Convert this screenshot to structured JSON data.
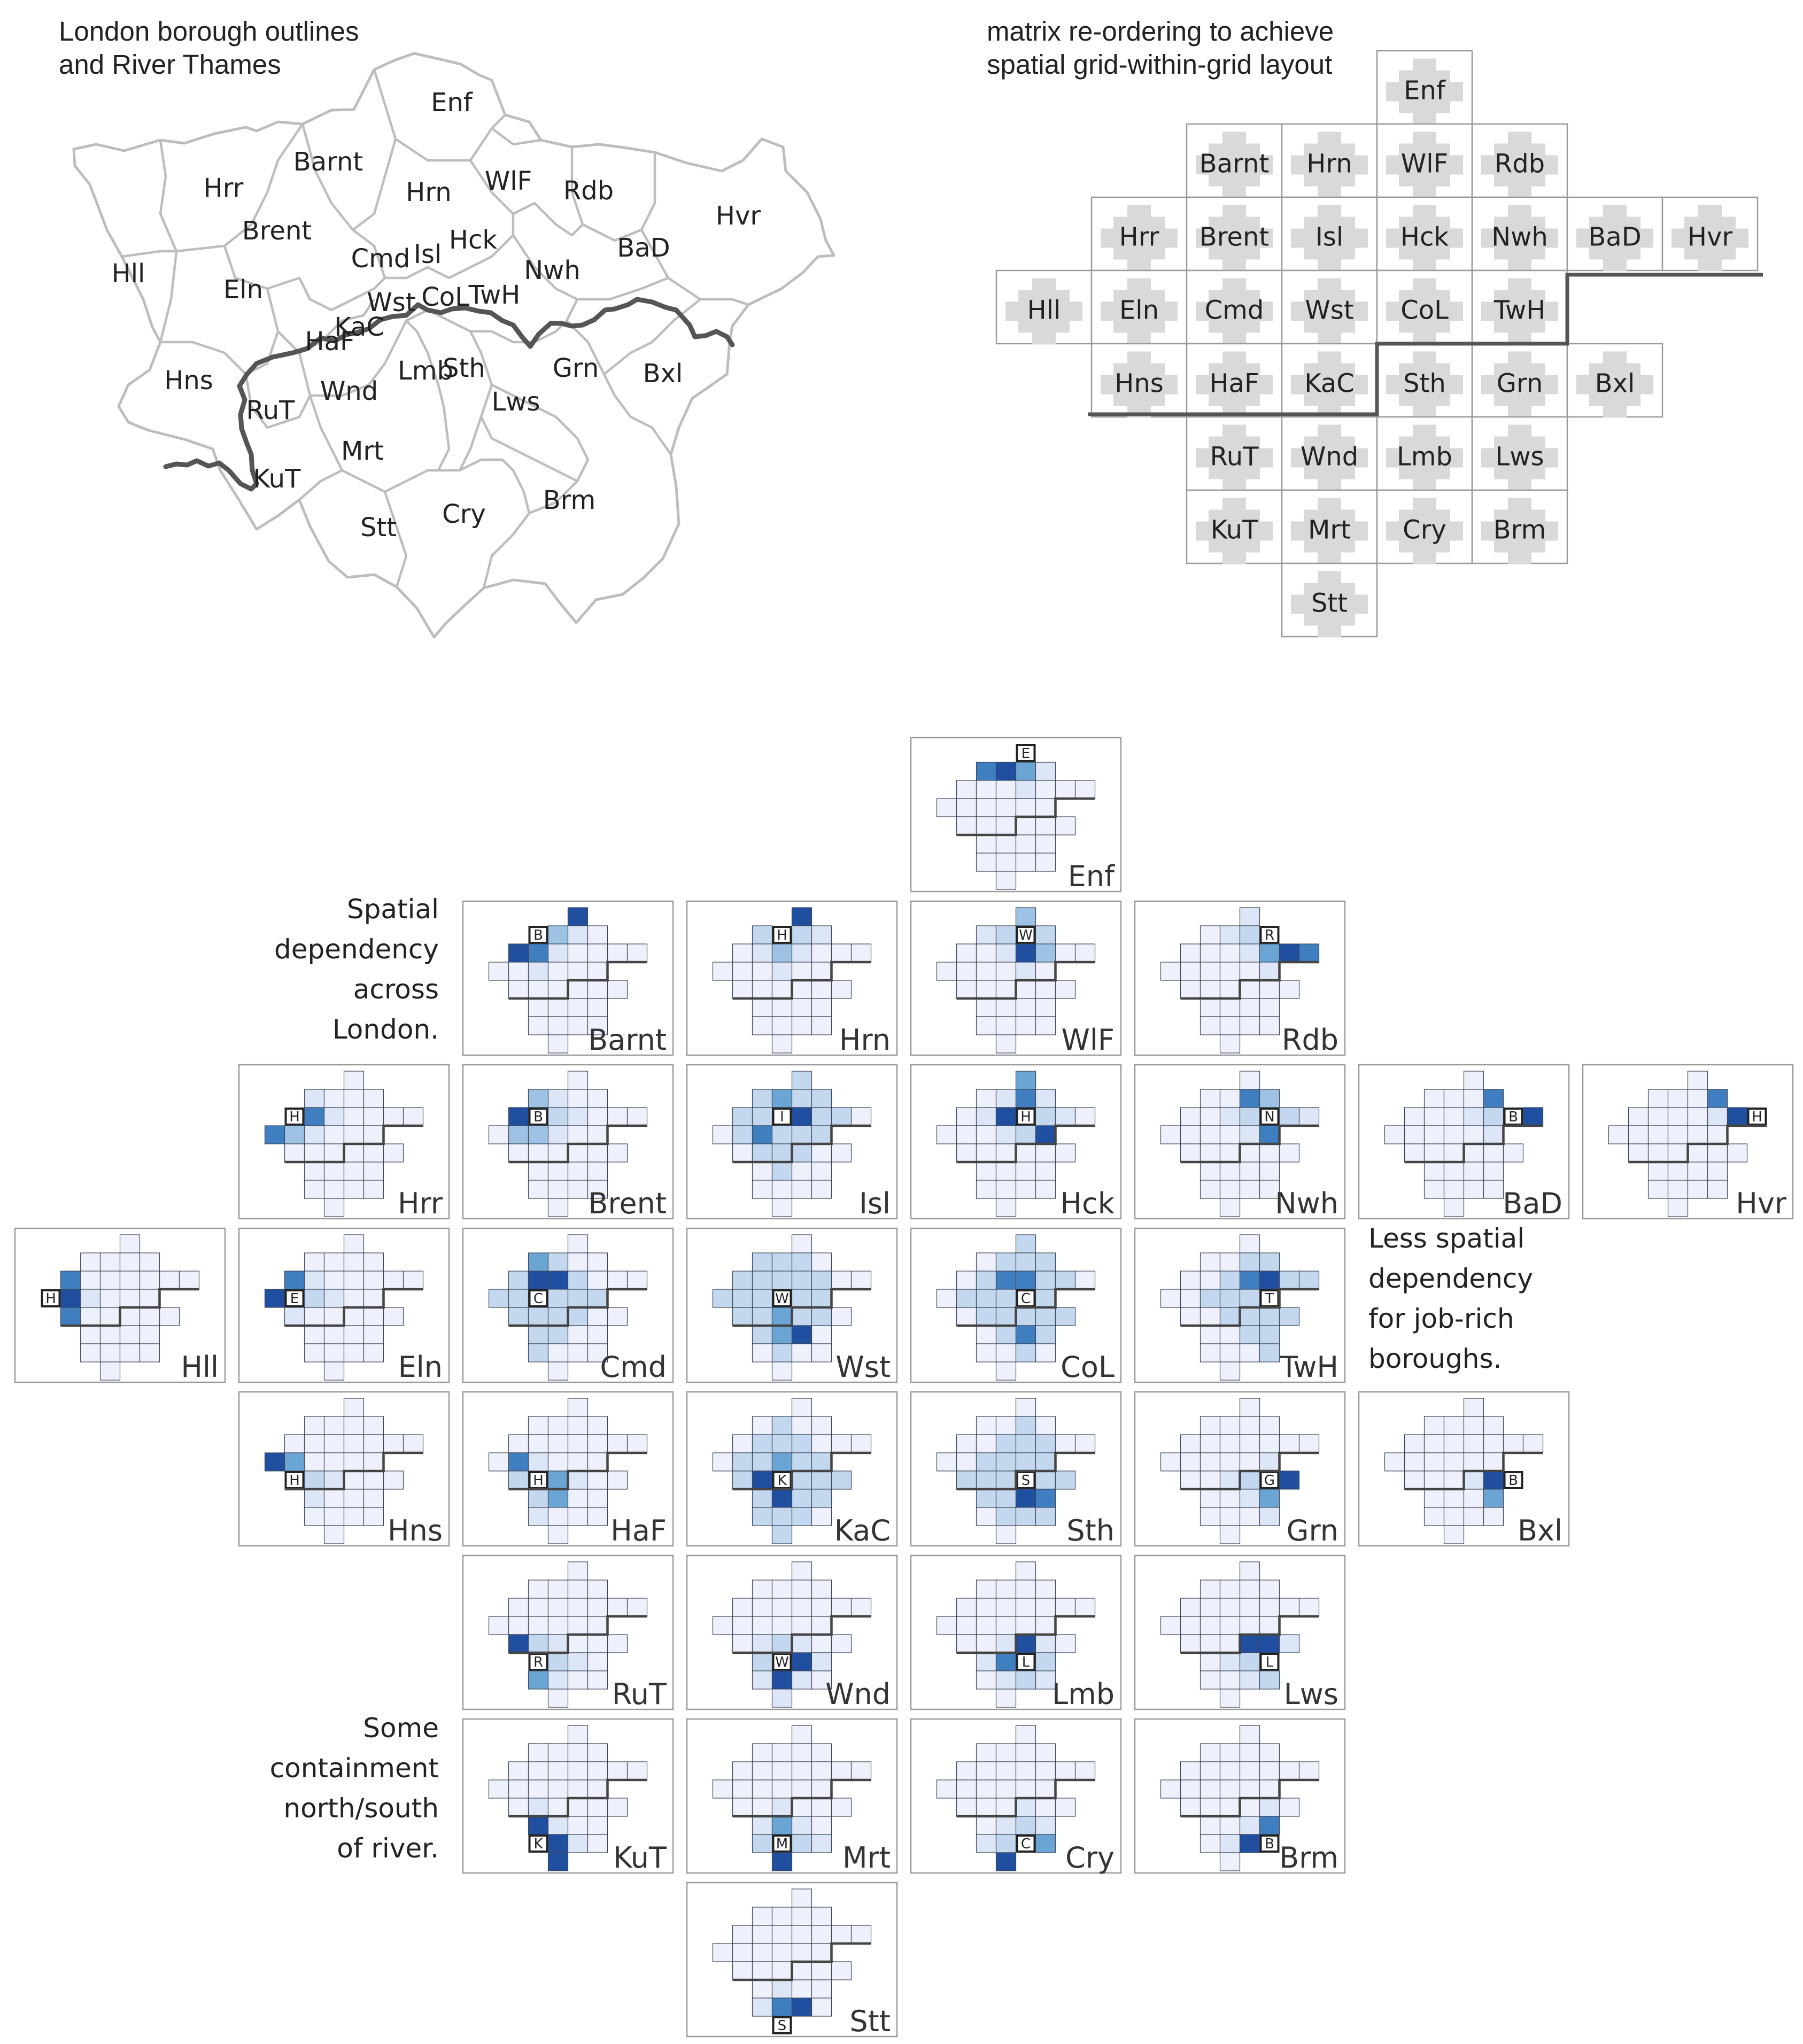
{
  "map_panel": {
    "title_line1": "London borough outlines",
    "title_line2": "and River Thames"
  },
  "grid_panel": {
    "title_line1": "matrix re-ordering to achieve",
    "title_line2": "spatial grid-within-grid layout"
  },
  "annotations": {
    "spatial": [
      "Spatial",
      "dependency",
      "across",
      "London."
    ],
    "jobrich": [
      "Less spatial",
      "dependency",
      "for job-rich",
      "boroughs."
    ],
    "river": [
      "Some",
      "containment",
      "north/south",
      "of river."
    ]
  },
  "colors": {
    "background": "#ffffff",
    "panel_border": "#9a9a9a",
    "borough_outline": "#bdbdbd",
    "river": "#555555",
    "focus_placeholder": "#d9d9d9",
    "scale": [
      "#eef1fb",
      "#dde6f6",
      "#c3d7ee",
      "#9dc2e3",
      "#6aa5d4",
      "#3f7fc0",
      "#1f4f9e"
    ]
  },
  "boroughs": [
    {
      "code": "Enf",
      "row": 0,
      "col": 4,
      "marker": "E"
    },
    {
      "code": "Barnt",
      "row": 1,
      "col": 2,
      "marker": "B"
    },
    {
      "code": "Hrn",
      "row": 1,
      "col": 3,
      "marker": "H"
    },
    {
      "code": "WlF",
      "row": 1,
      "col": 4,
      "marker": "W"
    },
    {
      "code": "Rdb",
      "row": 1,
      "col": 5,
      "marker": "R"
    },
    {
      "code": "Hrr",
      "row": 2,
      "col": 1,
      "marker": "H"
    },
    {
      "code": "Brent",
      "row": 2,
      "col": 2,
      "marker": "B"
    },
    {
      "code": "Isl",
      "row": 2,
      "col": 3,
      "marker": "I"
    },
    {
      "code": "Hck",
      "row": 2,
      "col": 4,
      "marker": "H"
    },
    {
      "code": "Nwh",
      "row": 2,
      "col": 5,
      "marker": "N"
    },
    {
      "code": "BaD",
      "row": 2,
      "col": 6,
      "marker": "B"
    },
    {
      "code": "Hvr",
      "row": 2,
      "col": 7,
      "marker": "H"
    },
    {
      "code": "Hll",
      "row": 3,
      "col": 0,
      "marker": "H"
    },
    {
      "code": "Eln",
      "row": 3,
      "col": 1,
      "marker": "E"
    },
    {
      "code": "Cmd",
      "row": 3,
      "col": 2,
      "marker": "C"
    },
    {
      "code": "Wst",
      "row": 3,
      "col": 3,
      "marker": "W"
    },
    {
      "code": "CoL",
      "row": 3,
      "col": 4,
      "marker": "C"
    },
    {
      "code": "TwH",
      "row": 3,
      "col": 5,
      "marker": "T"
    },
    {
      "code": "Hns",
      "row": 4,
      "col": 1,
      "marker": "H"
    },
    {
      "code": "HaF",
      "row": 4,
      "col": 2,
      "marker": "H"
    },
    {
      "code": "KaC",
      "row": 4,
      "col": 3,
      "marker": "K"
    },
    {
      "code": "Sth",
      "row": 4,
      "col": 4,
      "marker": "S"
    },
    {
      "code": "Grn",
      "row": 4,
      "col": 5,
      "marker": "G"
    },
    {
      "code": "Bxl",
      "row": 4,
      "col": 6,
      "marker": "B"
    },
    {
      "code": "RuT",
      "row": 5,
      "col": 2,
      "marker": "R"
    },
    {
      "code": "Wnd",
      "row": 5,
      "col": 3,
      "marker": "W"
    },
    {
      "code": "Lmb",
      "row": 5,
      "col": 4,
      "marker": "L"
    },
    {
      "code": "Lws",
      "row": 5,
      "col": 5,
      "marker": "L"
    },
    {
      "code": "KuT",
      "row": 6,
      "col": 2,
      "marker": "K"
    },
    {
      "code": "Mrt",
      "row": 6,
      "col": 3,
      "marker": "M"
    },
    {
      "code": "Cry",
      "row": 6,
      "col": 4,
      "marker": "C"
    },
    {
      "code": "Brm",
      "row": 6,
      "col": 5,
      "marker": "B"
    },
    {
      "code": "Stt",
      "row": 7,
      "col": 3,
      "marker": "S"
    }
  ],
  "map_labels": [
    {
      "code": "Enf"
    },
    {
      "code": "Barnt"
    },
    {
      "code": "Hrr"
    },
    {
      "code": "Hrn"
    },
    {
      "code": "WlF"
    },
    {
      "code": "Rdb"
    },
    {
      "code": "Hvr"
    },
    {
      "code": "Brent"
    },
    {
      "code": "Cmd"
    },
    {
      "code": "Isl"
    },
    {
      "code": "Hck"
    },
    {
      "code": "Nwh"
    },
    {
      "code": "BaD"
    },
    {
      "code": "Hll"
    },
    {
      "code": "Eln"
    },
    {
      "code": "Wst"
    },
    {
      "code": "CoL"
    },
    {
      "code": "TwH"
    },
    {
      "code": "KaC"
    },
    {
      "code": "HaF"
    },
    {
      "code": "Hns"
    },
    {
      "code": "Wnd"
    },
    {
      "code": "Lmb"
    },
    {
      "code": "Sth"
    },
    {
      "code": "Grn"
    },
    {
      "code": "Bxl"
    },
    {
      "code": "RuT"
    },
    {
      "code": "Lws"
    },
    {
      "code": "Mrt"
    },
    {
      "code": "KuT"
    },
    {
      "code": "Cry"
    },
    {
      "code": "Brm"
    },
    {
      "code": "Stt"
    }
  ],
  "strong_links": {
    "Enf": {
      "Barnt": 5,
      "Hrn": 6,
      "WlF": 4,
      "Enf": 0
    },
    "Barnt": {
      "Enf": 6,
      "Hrr": 6,
      "Brent": 5,
      "Hrn": 3
    },
    "Hrn": {
      "Enf": 6,
      "Isl": 3,
      "Barnt": 2
    },
    "WlF": {
      "Hck": 6,
      "Enf": 3,
      "Nwh": 3
    },
    "Rdb": {
      "BaD": 6,
      "Hvr": 5,
      "Nwh": 4
    },
    "Hrr": {
      "Hll": 5,
      "Brent": 5,
      "Eln": 3
    },
    "Brent": {
      "Hrr": 6,
      "Eln": 3,
      "Cmd": 3,
      "Barnt": 3
    },
    "Isl": {
      "Hck": 6,
      "Cmd": 5,
      "Hrn": 4
    },
    "Hck": {
      "Isl": 6,
      "TwH": 6,
      "Enf": 4,
      "WlF": 5
    },
    "Nwh": {
      "TwH": 5,
      "WlF": 5,
      "Rdb": 3
    },
    "BaD": {
      "Hvr": 6,
      "Rdb": 5
    },
    "Hvr": {
      "BaD": 6,
      "Rdb": 5
    },
    "Hll": {
      "Eln": 6,
      "Hrr": 5,
      "Hns": 5
    },
    "Eln": {
      "Hll": 6,
      "Hrr": 5
    },
    "Cmd": {
      "Brent": 6,
      "Isl": 6,
      "Barnt": 4
    },
    "Wst": {
      "Lmb": 6,
      "KaC": 4,
      "Wnd": 4
    },
    "CoL": {
      "Isl": 5,
      "Hck": 5,
      "Lmb": 5
    },
    "TwH": {
      "Nwh": 6,
      "Hck": 5
    },
    "Hns": {
      "Hll": 6,
      "Eln": 4
    },
    "HaF": {
      "Eln": 5,
      "KaC": 4,
      "Wnd": 4
    },
    "KaC": {
      "HaF": 6,
      "Wnd": 6,
      "Wst": 4
    },
    "Sth": {
      "Lmb": 6,
      "Lws": 5
    },
    "Grn": {
      "Bxl": 6,
      "Lws": 4
    },
    "Bxl": {
      "Grn": 6,
      "Lws": 4
    },
    "RuT": {
      "Hns": 6,
      "KuT": 4
    },
    "Wnd": {
      "Lmb": 6,
      "Mrt": 6
    },
    "Lmb": {
      "Sth": 6,
      "Wnd": 5
    },
    "Lws": {
      "Grn": 6,
      "Sth": 6
    },
    "KuT": {
      "RuT": 6,
      "Mrt": 6,
      "Stt": 6
    },
    "Mrt": {
      "Stt": 6,
      "Wnd": 4
    },
    "Cry": {
      "Stt": 6,
      "Brm": 4
    },
    "Brm": {
      "Cry": 6,
      "Lws": 5
    },
    "Stt": {
      "Cry": 6,
      "Mrt": 5
    }
  }
}
